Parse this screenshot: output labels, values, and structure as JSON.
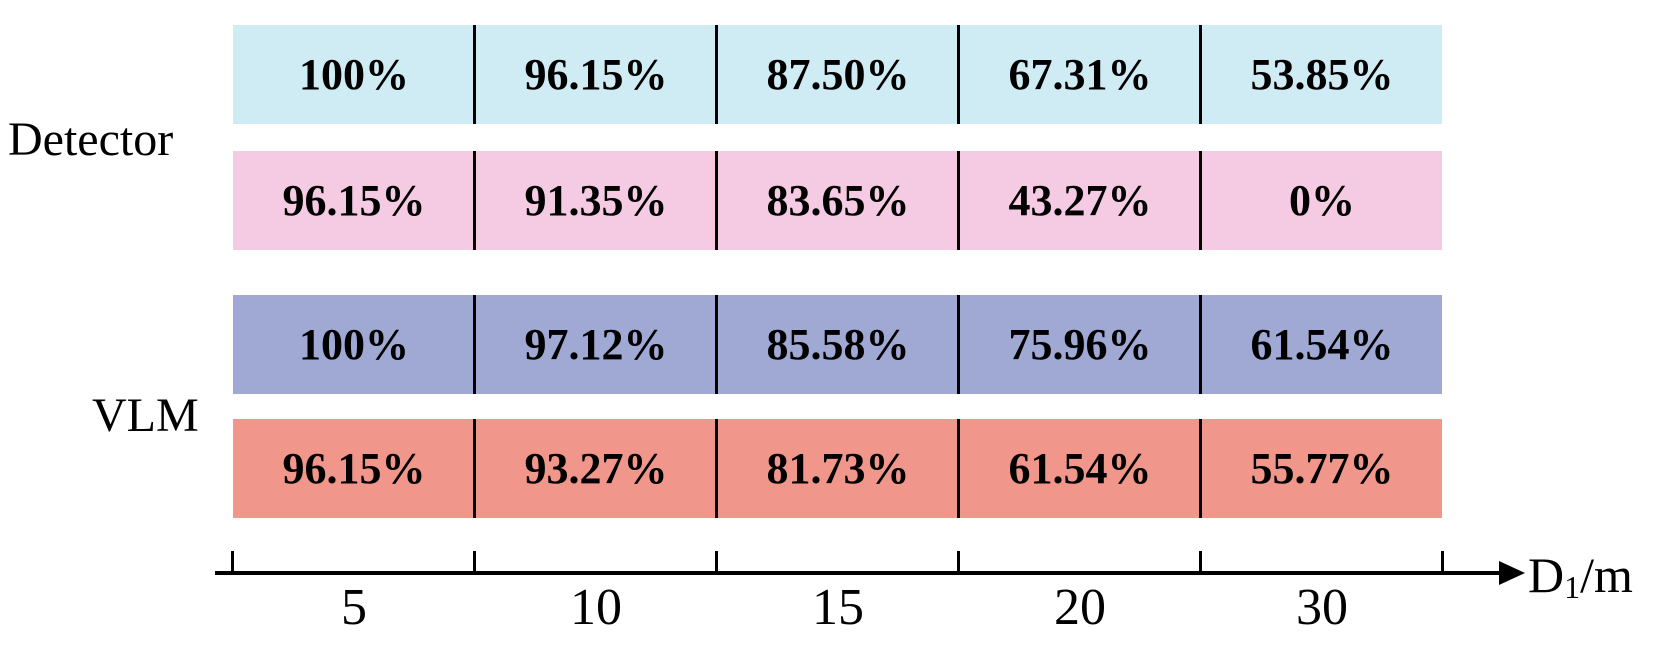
{
  "chart_data": {
    "type": "table",
    "categories": [
      "5",
      "10",
      "15",
      "20",
      "30"
    ],
    "xlabel": "D",
    "xlabel_sub": "1",
    "xlabel_unit": "/m",
    "groups": [
      {
        "label": "Detector",
        "rows": [
          {
            "color": "#cfebf3",
            "values": [
              "100%",
              "96.15%",
              "87.50%",
              "67.31%",
              "53.85%"
            ]
          },
          {
            "color": "#f5cae3",
            "values": [
              "96.15%",
              "91.35%",
              "83.65%",
              "43.27%",
              "0%"
            ]
          }
        ]
      },
      {
        "label": "VLM",
        "rows": [
          {
            "color": "#a0a8d4",
            "values": [
              "100%",
              "97.12%",
              "85.58%",
              "75.96%",
              "61.54%"
            ]
          },
          {
            "color": "#f0968a",
            "values": [
              "96.15%",
              "93.27%",
              "81.73%",
              "61.54%",
              "55.77%"
            ]
          }
        ]
      }
    ]
  }
}
